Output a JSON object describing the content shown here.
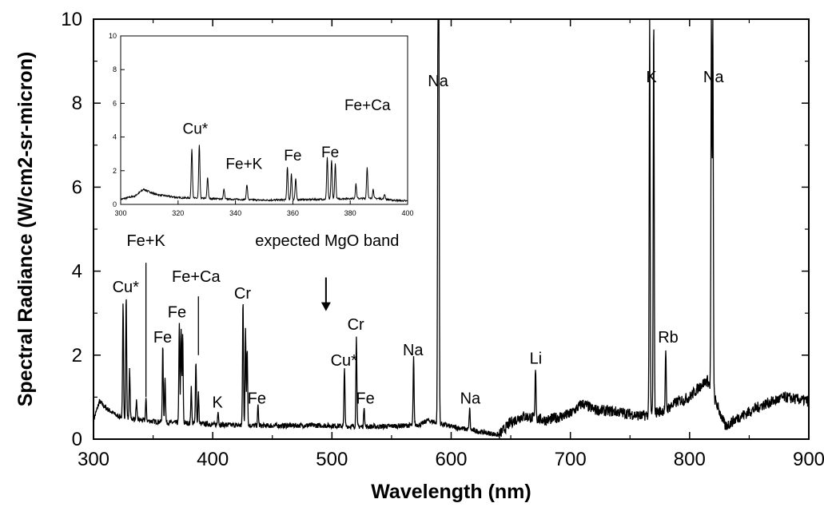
{
  "chart_data": [
    {
      "type": "line",
      "title": "",
      "xlabel": "Wavelength (nm)",
      "ylabel": "Spectral Radiance (W/cm2-sr-micron)",
      "xlim": [
        300,
        900
      ],
      "ylim": [
        0,
        10
      ],
      "xticks": [
        "300",
        "400",
        "500",
        "600",
        "700",
        "800",
        "900"
      ],
      "yticks": [
        "0",
        "2",
        "4",
        "6",
        "8",
        "10"
      ],
      "grid": false,
      "legend": "none",
      "series_color": "#000000",
      "baseline": [
        [
          300,
          0.45
        ],
        [
          305,
          0.9
        ],
        [
          310,
          0.75
        ],
        [
          320,
          0.55
        ],
        [
          340,
          0.45
        ],
        [
          360,
          0.4
        ],
        [
          380,
          0.38
        ],
        [
          400,
          0.35
        ],
        [
          420,
          0.33
        ],
        [
          440,
          0.32
        ],
        [
          460,
          0.32
        ],
        [
          480,
          0.33
        ],
        [
          500,
          0.32
        ],
        [
          520,
          0.3
        ],
        [
          540,
          0.3
        ],
        [
          560,
          0.32
        ],
        [
          575,
          0.35
        ],
        [
          580,
          0.45
        ],
        [
          600,
          0.3
        ],
        [
          620,
          0.2
        ],
        [
          640,
          0.1
        ],
        [
          650,
          0.4
        ],
        [
          660,
          0.55
        ],
        [
          680,
          0.45
        ],
        [
          700,
          0.6
        ],
        [
          710,
          0.85
        ],
        [
          720,
          0.7
        ],
        [
          740,
          0.65
        ],
        [
          760,
          0.55
        ],
        [
          780,
          0.7
        ],
        [
          790,
          0.9
        ],
        [
          800,
          1.0
        ],
        [
          810,
          1.3
        ],
        [
          815,
          1.4
        ],
        [
          830,
          0.3
        ],
        [
          840,
          0.5
        ],
        [
          860,
          0.8
        ],
        [
          880,
          1.0
        ],
        [
          900,
          0.9
        ]
      ],
      "peaks": [
        {
          "x": 324.8,
          "y": 3.2
        },
        {
          "x": 327.4,
          "y": 3.4
        },
        {
          "x": 330.3,
          "y": 1.65
        },
        {
          "x": 336,
          "y": 0.9
        },
        {
          "x": 344,
          "y": 0.95
        },
        {
          "x": 358.1,
          "y": 2.2
        },
        {
          "x": 360,
          "y": 1.5
        },
        {
          "x": 372,
          "y": 2.8
        },
        {
          "x": 373.5,
          "y": 2.6
        },
        {
          "x": 374.8,
          "y": 2.5
        },
        {
          "x": 382,
          "y": 1.25
        },
        {
          "x": 385.9,
          "y": 1.9
        },
        {
          "x": 388,
          "y": 1.1
        },
        {
          "x": 404.5,
          "y": 0.7
        },
        {
          "x": 425.4,
          "y": 3.3
        },
        {
          "x": 427.5,
          "y": 2.6
        },
        {
          "x": 428.9,
          "y": 2.2
        },
        {
          "x": 438,
          "y": 0.8
        },
        {
          "x": 510.5,
          "y": 1.75
        },
        {
          "x": 520.5,
          "y": 2.5
        },
        {
          "x": 527,
          "y": 0.8
        },
        {
          "x": 568.5,
          "y": 1.95
        },
        {
          "x": 589,
          "y": 10
        },
        {
          "x": 589.6,
          "y": 10
        },
        {
          "x": 615.5,
          "y": 0.75
        },
        {
          "x": 670.8,
          "y": 1.75
        },
        {
          "x": 766.5,
          "y": 10
        },
        {
          "x": 769.9,
          "y": 10
        },
        {
          "x": 780,
          "y": 2.05
        },
        {
          "x": 794.8,
          "y": 0.9
        },
        {
          "x": 818.3,
          "y": 10
        },
        {
          "x": 819.5,
          "y": 10
        }
      ],
      "annotations": [
        {
          "text": "Cu*",
          "x": 327,
          "y": 3.5
        },
        {
          "text": "Fe+K",
          "x": 344,
          "y": 4.6
        },
        {
          "text": "Fe",
          "x": 358,
          "y": 2.3
        },
        {
          "text": "Fe",
          "x": 370,
          "y": 2.9
        },
        {
          "text": "Fe+Ca",
          "x": 386,
          "y": 3.75
        },
        {
          "text": "Cr",
          "x": 425,
          "y": 3.35
        },
        {
          "text": "K",
          "x": 404,
          "y": 0.75
        },
        {
          "text": "Fe",
          "x": 437,
          "y": 0.85
        },
        {
          "text": "expected MgO band",
          "x": 496,
          "y": 4.6
        },
        {
          "text": "Cu*",
          "x": 510,
          "y": 1.75
        },
        {
          "text": "Cr",
          "x": 520,
          "y": 2.6
        },
        {
          "text": "Fe",
          "x": 528,
          "y": 0.85
        },
        {
          "text": "Na",
          "x": 568,
          "y": 2.0
        },
        {
          "text": "Na",
          "x": 589,
          "y": 8.4
        },
        {
          "text": "Na",
          "x": 616,
          "y": 0.85
        },
        {
          "text": "Li",
          "x": 671,
          "y": 1.8
        },
        {
          "text": "K",
          "x": 768,
          "y": 8.5
        },
        {
          "text": "Rb",
          "x": 782,
          "y": 2.3
        },
        {
          "text": "Na",
          "x": 820,
          "y": 8.5
        }
      ]
    },
    {
      "type": "line",
      "title": "",
      "xlabel": "",
      "ylabel": "",
      "xlim": [
        300,
        400
      ],
      "ylim": [
        0,
        10
      ],
      "xticks": [
        "300",
        "320",
        "340",
        "360",
        "380",
        "400"
      ],
      "yticks": [
        "0",
        "2",
        "4",
        "6",
        "8",
        "10"
      ],
      "baseline": [
        [
          300,
          0.3
        ],
        [
          305,
          0.5
        ],
        [
          308,
          0.9
        ],
        [
          312,
          0.6
        ],
        [
          320,
          0.4
        ],
        [
          330,
          0.35
        ],
        [
          340,
          0.3
        ],
        [
          350,
          0.25
        ],
        [
          360,
          0.28
        ],
        [
          370,
          0.3
        ],
        [
          380,
          0.35
        ],
        [
          390,
          0.35
        ],
        [
          395,
          0.25
        ],
        [
          400,
          0.2
        ]
      ],
      "peaks": [
        {
          "x": 324.8,
          "y": 3.3
        },
        {
          "x": 327.4,
          "y": 3.5
        },
        {
          "x": 330.3,
          "y": 1.6
        },
        {
          "x": 336,
          "y": 0.9
        },
        {
          "x": 344,
          "y": 1.2
        },
        {
          "x": 358.1,
          "y": 2.2
        },
        {
          "x": 359.5,
          "y": 1.8
        },
        {
          "x": 361,
          "y": 1.5
        },
        {
          "x": 372,
          "y": 2.8
        },
        {
          "x": 373.5,
          "y": 2.6
        },
        {
          "x": 374.8,
          "y": 2.4
        },
        {
          "x": 382,
          "y": 1.2
        },
        {
          "x": 385.9,
          "y": 2.2
        },
        {
          "x": 388,
          "y": 0.9
        },
        {
          "x": 392,
          "y": 0.6
        }
      ],
      "annotations": [
        {
          "text": "Cu*",
          "x": 326,
          "y": 4.2
        },
        {
          "text": "Fe+K",
          "x": 343,
          "y": 2.1
        },
        {
          "text": "Fe",
          "x": 360,
          "y": 2.6
        },
        {
          "text": "Fe",
          "x": 373,
          "y": 2.8
        },
        {
          "text": "Fe+Ca",
          "x": 386,
          "y": 5.6
        }
      ]
    }
  ]
}
